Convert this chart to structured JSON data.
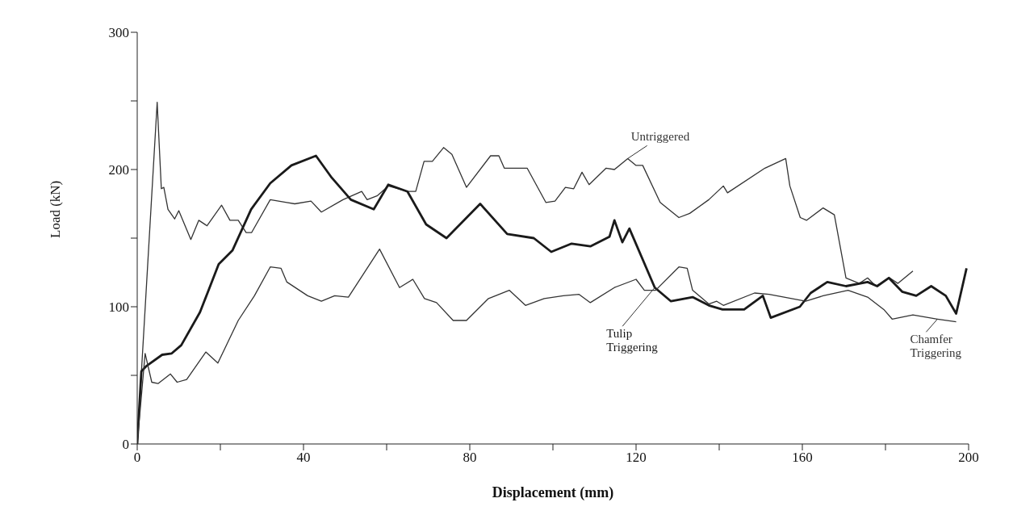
{
  "chart_data": {
    "type": "line",
    "xlabel": "Displacement (mm)",
    "ylabel": "Load (kN)",
    "xlim": [
      0,
      200
    ],
    "xticks": [
      0,
      {
        "value": 20,
        "label": null
      },
      40,
      {
        "value": 60,
        "label": null
      },
      80,
      {
        "value": 100,
        "label": null
      },
      120,
      {
        "value": 140,
        "label": null
      },
      160,
      {
        "value": 180,
        "label": null
      },
      200
    ],
    "ylim": [
      0,
      300
    ],
    "yticks": [
      0,
      {
        "value": 50,
        "label": null
      },
      100,
      {
        "value": 150,
        "label": null
      },
      200,
      {
        "value": 250,
        "label": null
      },
      300
    ],
    "grid": false,
    "series": [
      {
        "name": "Untriggered",
        "color": "#333333",
        "x": [
          0,
          4.8,
          5.8,
          6.4,
          7.4,
          9,
          10,
          12.9,
          14.8,
          16.8,
          20.3,
          22.3,
          24.3,
          26.2,
          27.5,
          32,
          36,
          37.9,
          41.8,
          44.3,
          49.5,
          54,
          55.3,
          57.8,
          60.4,
          65,
          67,
          69,
          71,
          73.7,
          75.7,
          79.2,
          85,
          87,
          88.3,
          93.8,
          98.3,
          100.5,
          103,
          105,
          107,
          108.7,
          112.8,
          114.8,
          118,
          120,
          121.6,
          125.8,
          130.3,
          132.9,
          137.5,
          141,
          142,
          151,
          156,
          157,
          159.5,
          161,
          165,
          167.7,
          170.5,
          173.7,
          175.7,
          177.7,
          181,
          183,
          186.6
        ],
        "values": [
          0,
          249,
          186,
          187,
          171,
          164,
          170,
          149,
          163,
          159,
          174,
          163,
          163,
          154,
          154,
          178,
          176,
          175,
          177,
          169,
          178,
          184,
          178,
          181,
          188,
          184,
          184,
          206,
          206,
          216,
          211,
          187,
          210,
          210,
          201,
          201,
          176,
          177,
          187,
          186,
          198,
          189,
          201,
          200,
          208,
          203,
          203,
          176,
          165,
          168,
          178,
          188,
          183,
          201,
          208,
          188,
          165,
          163,
          172,
          167,
          121,
          117,
          121,
          115,
          121,
          117,
          126
        ]
      },
      {
        "name": "Tulip Triggering",
        "color": "#1a1a1a",
        "x": [
          0,
          1,
          2.3,
          6,
          8.3,
          10.6,
          15.1,
          19.6,
          22.9,
          27.4,
          32,
          37.1,
          43,
          46.8,
          51.4,
          56.9,
          60.4,
          65,
          69.5,
          74.4,
          82.5,
          89,
          95.4,
          99.6,
          104.5,
          109,
          113.6,
          114.8,
          116.7,
          118.4,
          124.5,
          128.4,
          133.6,
          137.5,
          140.8,
          146,
          150.5,
          152.4,
          159.4,
          162,
          166,
          170.5,
          175.7,
          178,
          180.8,
          184,
          187.4,
          191,
          194.5,
          197,
          199.5
        ],
        "values": [
          0,
          53,
          57,
          65,
          66,
          72,
          96,
          131,
          141,
          171,
          190,
          203,
          210,
          194,
          178,
          171,
          189,
          184,
          160,
          150,
          175,
          153,
          150,
          140,
          146,
          144,
          151,
          163,
          147,
          157,
          114,
          104,
          107,
          101,
          98,
          98,
          108,
          92,
          100,
          110,
          118,
          115,
          118,
          115,
          121,
          111,
          108,
          115,
          108,
          95,
          128
        ]
      },
      {
        "name": "Chamfer Triggering",
        "color": "#333333",
        "x": [
          0,
          1.9,
          3.5,
          5,
          8,
          9.6,
          11.9,
          16.5,
          19.4,
          24.3,
          28.2,
          32,
          34.6,
          36,
          41,
          44.3,
          47.5,
          50.8,
          58.3,
          63.1,
          66.3,
          69.1,
          72,
          76,
          79.2,
          84.5,
          89.5,
          93.4,
          97.9,
          102.5,
          106.3,
          109,
          114.8,
          120,
          122,
          124.7,
          130.3,
          132.3,
          133.6,
          137.5,
          139.4,
          141,
          148.5,
          152,
          160.8,
          165,
          171,
          175.7,
          179.6,
          181.6,
          186.6,
          192.5,
          197
        ],
        "values": [
          0,
          66,
          45,
          44,
          51,
          45,
          47,
          67,
          59,
          90,
          108,
          129,
          128,
          118,
          108,
          104,
          108,
          107,
          142,
          114,
          120,
          106,
          103,
          90,
          90,
          106,
          112,
          101,
          106,
          108,
          109,
          103,
          114,
          120,
          112,
          112,
          129,
          128,
          112,
          102,
          104,
          101,
          110,
          109,
          104,
          108,
          112,
          107,
          98,
          91,
          94,
          91,
          89
        ]
      }
    ]
  }
}
